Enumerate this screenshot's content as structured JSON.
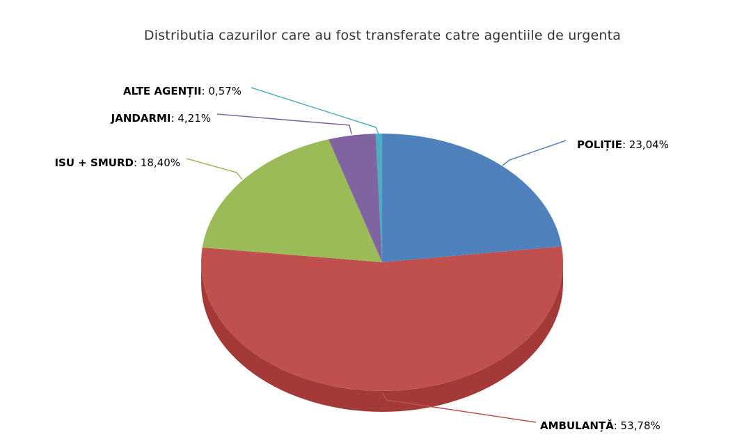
{
  "chart_data": {
    "type": "pie",
    "title": "Distributia cazurilor care au fost transferate catre agentiile de urgenta",
    "slices": [
      {
        "name": "POLIȚIE",
        "value": 23.04,
        "value_label": "23,04%",
        "color": "#4F81BD",
        "side_color": "#3A6499"
      },
      {
        "name": "AMBULANȚĂ",
        "value": 53.78,
        "value_label": "53,78%",
        "color": "#C0504D",
        "side_color": "#A33A37"
      },
      {
        "name": "ISU + SMURD",
        "value": 18.4,
        "value_label": "18,40%",
        "color": "#9BBB59",
        "side_color": "#7E9A44"
      },
      {
        "name": "JANDARMI",
        "value": 4.21,
        "value_label": "4,21%",
        "color": "#8064A2",
        "side_color": "#654E82"
      },
      {
        "name": "ALTE AGENȚII",
        "value": 0.57,
        "value_label": "0,57%",
        "color": "#4BACC6",
        "side_color": "#3A8EA6"
      }
    ],
    "legend": "none"
  }
}
